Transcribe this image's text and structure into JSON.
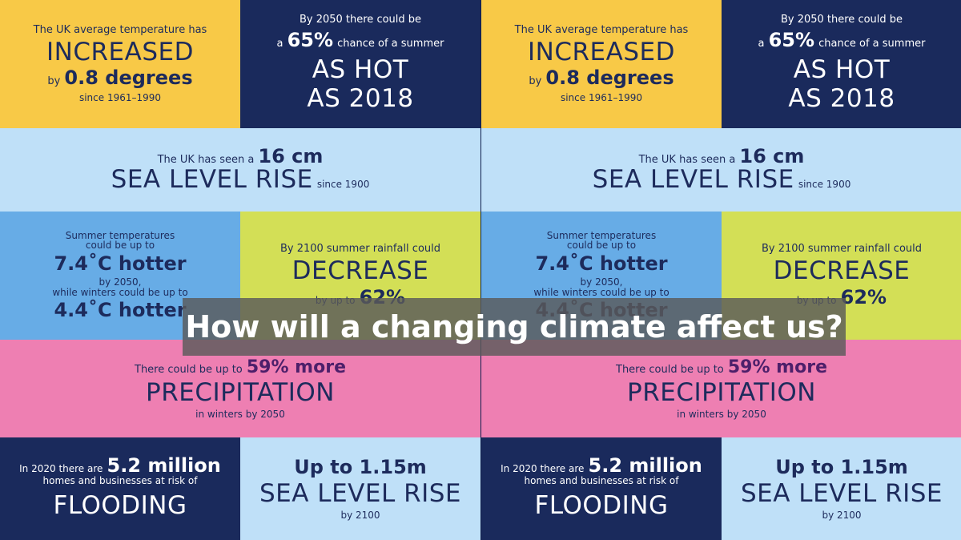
{
  "tiles": {
    "temp": {
      "intro": "The UK average temperature has",
      "big": "INCREASED",
      "by": "by",
      "amount": "0.8 degrees",
      "since": "since 1961–1990"
    },
    "summer2050": {
      "intro": "By 2050 there could be",
      "a": "a",
      "pct": "65%",
      "chance": "chance of a summer",
      "big1": "AS HOT",
      "big2": "AS 2018"
    },
    "sealevel": {
      "intro": "The UK has seen a",
      "amount": "16 cm",
      "big": "SEA LEVEL RISE",
      "since": "since 1900"
    },
    "summertemps": {
      "intro1": "Summer temperatures",
      "intro2": "could be up to",
      "hot1": "7.4˚C hotter",
      "by2050": "by 2050,",
      "winters": "while winters could be up to",
      "hot2": "4.4˚C hotter"
    },
    "rainfall": {
      "intro": "By 2100 summer rainfall could",
      "big": "DECREASE",
      "byupto": "by up to",
      "pct": "62%"
    },
    "precip": {
      "intro": "There could be up to",
      "pct": "59% more",
      "big": "PRECIPITATION",
      "tail": "in winters by 2050"
    },
    "flooding": {
      "intro": "In 2020 there are",
      "amount": "5.2 million",
      "line2": "homes and businesses at risk of",
      "big": "FLOODING"
    },
    "sealevel2100": {
      "amount": "Up to 1.15m",
      "big": "SEA LEVEL RISE",
      "tail": "by 2100"
    }
  },
  "overlay": {
    "title": "How will a changing climate affect us?"
  }
}
